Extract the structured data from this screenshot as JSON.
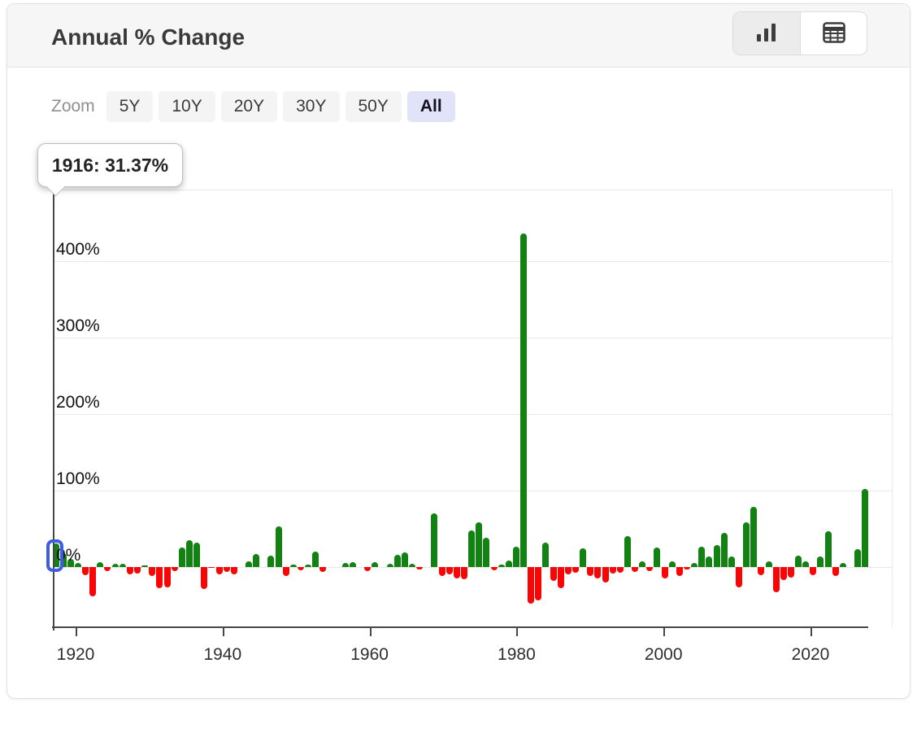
{
  "header": {
    "title": "Annual % Change",
    "view_toggle": {
      "options": [
        {
          "icon": "bar-chart-icon",
          "active": true
        },
        {
          "icon": "table-icon",
          "active": false
        }
      ]
    }
  },
  "zoom_controls": {
    "label": "Zoom",
    "options": [
      "5Y",
      "10Y",
      "20Y",
      "30Y",
      "50Y",
      "All"
    ],
    "active": "All"
  },
  "tooltip": {
    "text": "1916: 31.37%"
  },
  "chart_data": {
    "type": "bar",
    "title": "Annual % Change",
    "unit": "%",
    "year_start": 1916,
    "year_end": 2025,
    "values": [
      31.37,
      18,
      11,
      5,
      -11,
      -38,
      6,
      -5,
      4,
      4,
      -10,
      -8,
      2,
      -12,
      -28,
      -26,
      -5,
      26,
      35,
      32,
      -29,
      -1,
      -10,
      -6,
      -9,
      0,
      8,
      17,
      0,
      15,
      53,
      -12,
      3,
      -4,
      3,
      20,
      -6,
      0,
      0,
      5,
      6,
      0,
      -5,
      6,
      0,
      4,
      16,
      19,
      4,
      -3,
      0,
      70,
      -12,
      -10,
      -15,
      -16,
      48,
      59,
      38,
      -4,
      3,
      9,
      27,
      435.5,
      -48,
      -43,
      32,
      -18,
      -28,
      -9,
      -7,
      25,
      -12,
      -15,
      -20,
      -8,
      -7,
      40,
      -6,
      7,
      -5,
      26,
      -15,
      7,
      -12,
      -3,
      5,
      27,
      14,
      29,
      45,
      14,
      -26,
      58,
      79,
      -11,
      8,
      -33,
      -17,
      -14,
      15,
      8,
      -11,
      14,
      47,
      -12,
      5,
      0,
      23,
      102
    ],
    "xticks": [
      1920,
      1940,
      1960,
      1980,
      2000,
      2020
    ],
    "ytick_labels": [
      "400%",
      "300%",
      "200%",
      "100%",
      "0%"
    ],
    "ytick_values": [
      400,
      300,
      200,
      100,
      0
    ],
    "ylim": [
      -80,
      495
    ],
    "grid": true,
    "legend": false,
    "colors": {
      "positive": "#128212",
      "negative": "#fa0505",
      "highlight": "#3f5ce3"
    },
    "highlight": {
      "year": 1916,
      "value": 31.37
    }
  }
}
